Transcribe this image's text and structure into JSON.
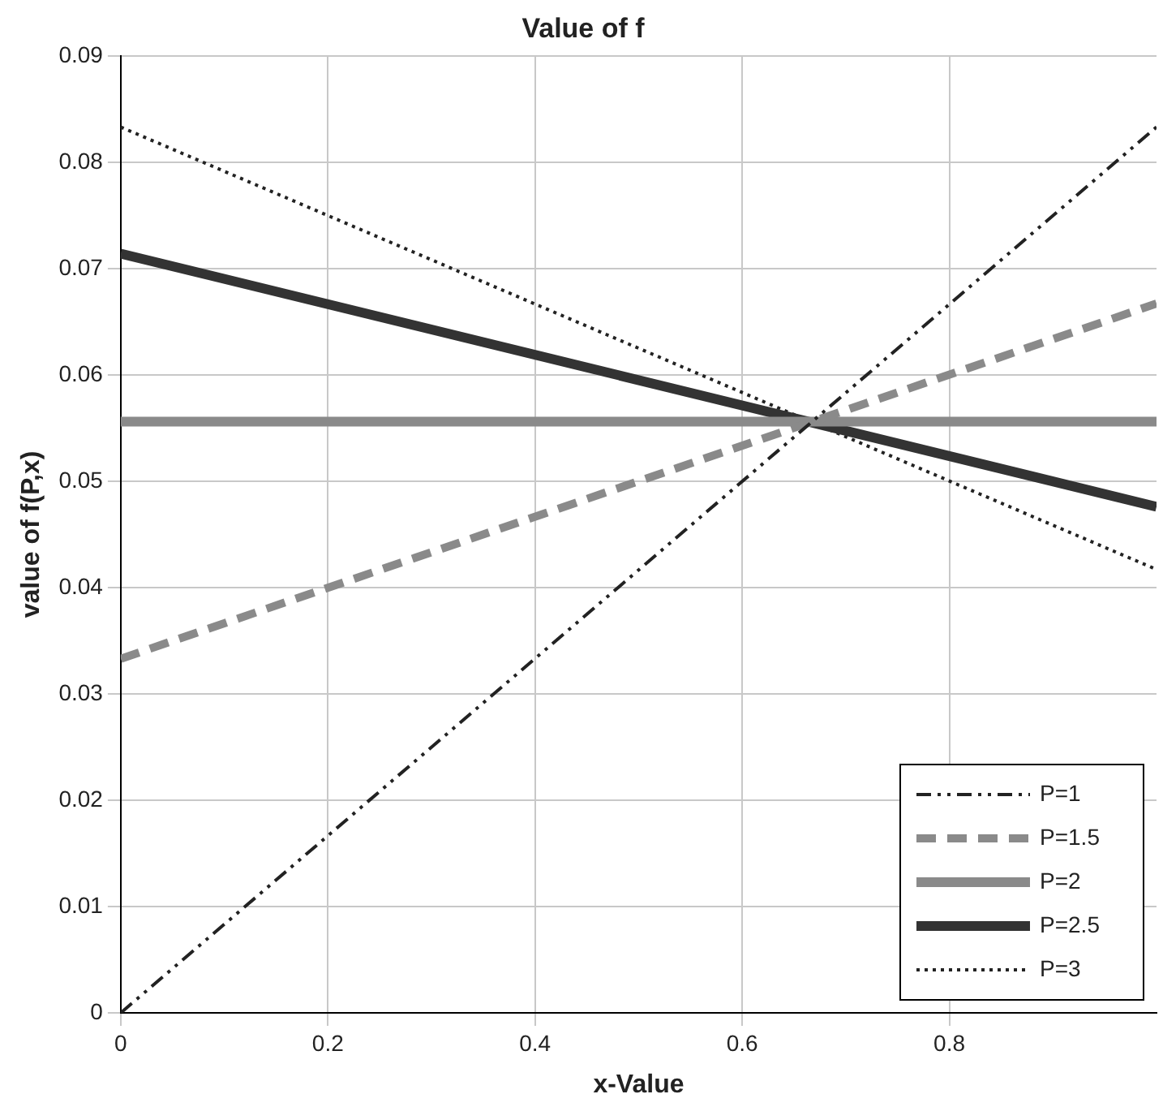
{
  "chart_data": {
    "type": "line",
    "title": "Value of f",
    "xlabel": "x-Value",
    "ylabel": "value of f(P,x)",
    "x": [
      0,
      1
    ],
    "xlim": [
      0,
      1
    ],
    "xticks": [
      0,
      0.2,
      0.4,
      0.6,
      0.8
    ],
    "ylim": [
      0,
      0.09
    ],
    "yticks": [
      0,
      0.01,
      0.02,
      0.03,
      0.04,
      0.05,
      0.06,
      0.07,
      0.08,
      0.09
    ],
    "grid": true,
    "legend": "bottom right",
    "marker": "none",
    "series": [
      {
        "name": "P=1",
        "color": "#222222",
        "line_style": "dashdot",
        "values": [
          0,
          0.0833
        ]
      },
      {
        "name": "P=1.5",
        "color": "#8a8a8a",
        "line_style": "dashed",
        "values": [
          0.0333,
          0.0667
        ]
      },
      {
        "name": "P=2",
        "color": "#8a8a8a",
        "line_style": "solid",
        "values": [
          0.0556,
          0.0556
        ]
      },
      {
        "name": "P=2.5",
        "color": "#333333",
        "line_style": "solid",
        "values": [
          0.0714,
          0.0476
        ]
      },
      {
        "name": "P=3",
        "color": "#222222",
        "line_style": "dotted",
        "values": [
          0.0833,
          0.0417
        ]
      }
    ]
  }
}
